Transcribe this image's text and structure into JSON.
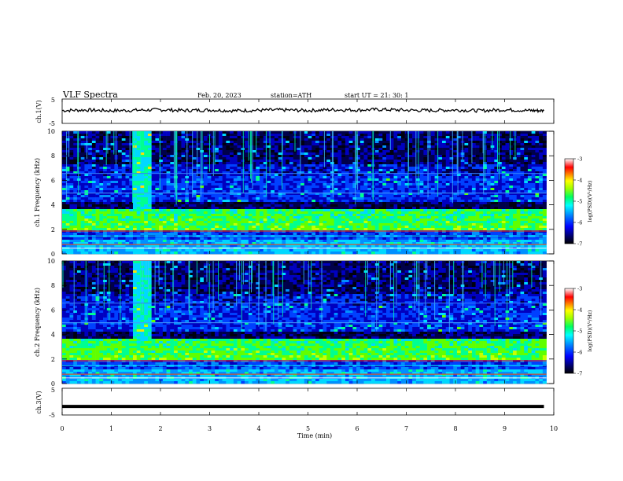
{
  "header": {
    "title": "VLF  Spectra",
    "date": "Feb. 20, 2023",
    "station": "station=ATH",
    "start": "start  UT  =   21: 30: 1"
  },
  "colors": {
    "spectrum_stops": [
      "#000000",
      "#00008b",
      "#0000ff",
      "#0080ff",
      "#00ffff",
      "#00ff80",
      "#80ff00",
      "#ffff00",
      "#ff8000",
      "#ff0000",
      "#ffffff"
    ],
    "trace": "#000000"
  },
  "chart_data": [
    {
      "type": "line",
      "panel": "ch1-waveform",
      "ylabel": "ch.1(V)",
      "ylim": [
        -5,
        5
      ],
      "yticks": [
        "5",
        "-5"
      ],
      "xlim": [
        0,
        10
      ],
      "x": [
        0,
        0.5,
        1,
        1.5,
        2,
        2.5,
        3,
        3.5,
        4,
        4.5,
        5,
        5.5,
        6,
        6.5,
        7,
        7.5,
        8,
        8.5,
        9,
        9.5,
        9.8
      ],
      "values": [
        0.3,
        0.5,
        0.2,
        0.4,
        0.6,
        0.3,
        0.5,
        0.2,
        0.4,
        0.5,
        0.3,
        0.6,
        0.5,
        0.7,
        0.4,
        0.3,
        0.5,
        0.2,
        0.6,
        0.3,
        0.2
      ]
    },
    {
      "type": "heatmap",
      "panel": "ch1-spectrogram",
      "ylabel": "ch.1 Frequency (kHz)",
      "ylim": [
        0,
        10
      ],
      "yticks": [
        "0",
        "2",
        "4",
        "6",
        "8",
        "10"
      ],
      "xlim": [
        0,
        10
      ],
      "colorbar": {
        "label": "log(PSD)(V²/Hz)",
        "range": [
          -7,
          -3
        ],
        "ticks": [
          "-3",
          "-4",
          "-5",
          "-6",
          "-7"
        ]
      }
    },
    {
      "type": "heatmap",
      "panel": "ch2-spectrogram",
      "ylabel": "ch.2 Frequency (kHz)",
      "ylim": [
        0,
        10
      ],
      "yticks": [
        "0",
        "2",
        "4",
        "6",
        "8",
        "10"
      ],
      "xlim": [
        0,
        10
      ],
      "colorbar": {
        "label": "log(PSD)(V²/Hz)",
        "range": [
          -7,
          -3
        ],
        "ticks": [
          "-3",
          "-4",
          "-5",
          "-6",
          "-7"
        ]
      }
    },
    {
      "type": "line",
      "panel": "ch3-waveform",
      "ylabel": "ch.3(V)",
      "ylim": [
        -5,
        5
      ],
      "yticks": [
        "5",
        "-5"
      ],
      "xlim": [
        0,
        10
      ],
      "x": [
        0,
        9.8
      ],
      "values": [
        -1.8,
        -1.8
      ]
    }
  ],
  "xaxis": {
    "label": "Time  (min)",
    "ticks": [
      "0",
      "1",
      "2",
      "3",
      "4",
      "5",
      "6",
      "7",
      "8",
      "9",
      "10"
    ]
  }
}
